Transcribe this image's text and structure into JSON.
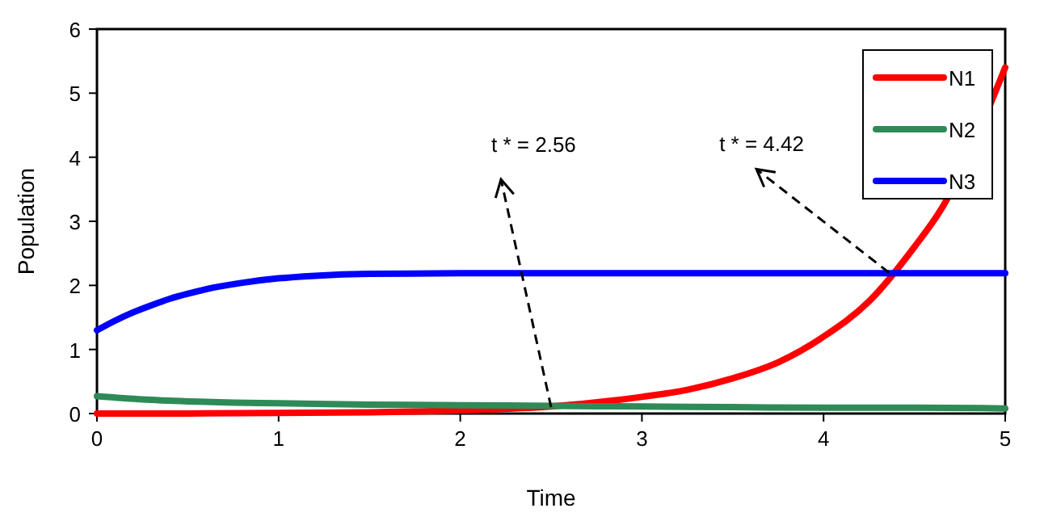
{
  "chart_data": {
    "type": "line",
    "xlabel": "Time",
    "ylabel": "Population",
    "xlim": [
      0,
      5
    ],
    "ylim": [
      0,
      6
    ],
    "xticks": [
      0,
      1,
      2,
      3,
      4,
      5
    ],
    "yticks": [
      0,
      1,
      2,
      3,
      4,
      5,
      6
    ],
    "grid": false,
    "legend": "top right",
    "marker": "none",
    "line_style": "solid",
    "series": [
      {
        "name": "N1",
        "color": "#ff0000",
        "x": [
          0,
          0.5,
          1,
          1.5,
          2,
          2.5,
          3,
          3.25,
          3.5,
          3.75,
          4,
          4.25,
          4.5,
          4.65,
          5
        ],
        "values": [
          0,
          0,
          0.01,
          0.02,
          0.05,
          0.11,
          0.26,
          0.37,
          0.55,
          0.8,
          1.2,
          1.75,
          2.6,
          3.2,
          5.4
        ]
      },
      {
        "name": "N2",
        "color": "#2e8b57",
        "x": [
          0,
          0.25,
          0.5,
          0.75,
          1,
          1.5,
          2,
          2.5,
          3,
          3.5,
          4,
          4.5,
          5
        ],
        "values": [
          0.27,
          0.22,
          0.19,
          0.17,
          0.16,
          0.14,
          0.13,
          0.12,
          0.11,
          0.1,
          0.09,
          0.09,
          0.08
        ]
      },
      {
        "name": "N3",
        "color": "#0000ff",
        "x": [
          0,
          0.1,
          0.2,
          0.3,
          0.4,
          0.5,
          0.6,
          0.8,
          1,
          1.2,
          1.5,
          2,
          3,
          4,
          5
        ],
        "values": [
          1.3,
          1.45,
          1.58,
          1.69,
          1.79,
          1.87,
          1.94,
          2.04,
          2.11,
          2.15,
          2.18,
          2.19,
          2.19,
          2.19,
          2.19
        ]
      }
    ],
    "annotations": [
      {
        "text": "t * = 2.56",
        "x": 2.5,
        "y": 0.1
      },
      {
        "text": "t * = 4.42",
        "x": 4.36,
        "y": 2.2
      }
    ]
  }
}
